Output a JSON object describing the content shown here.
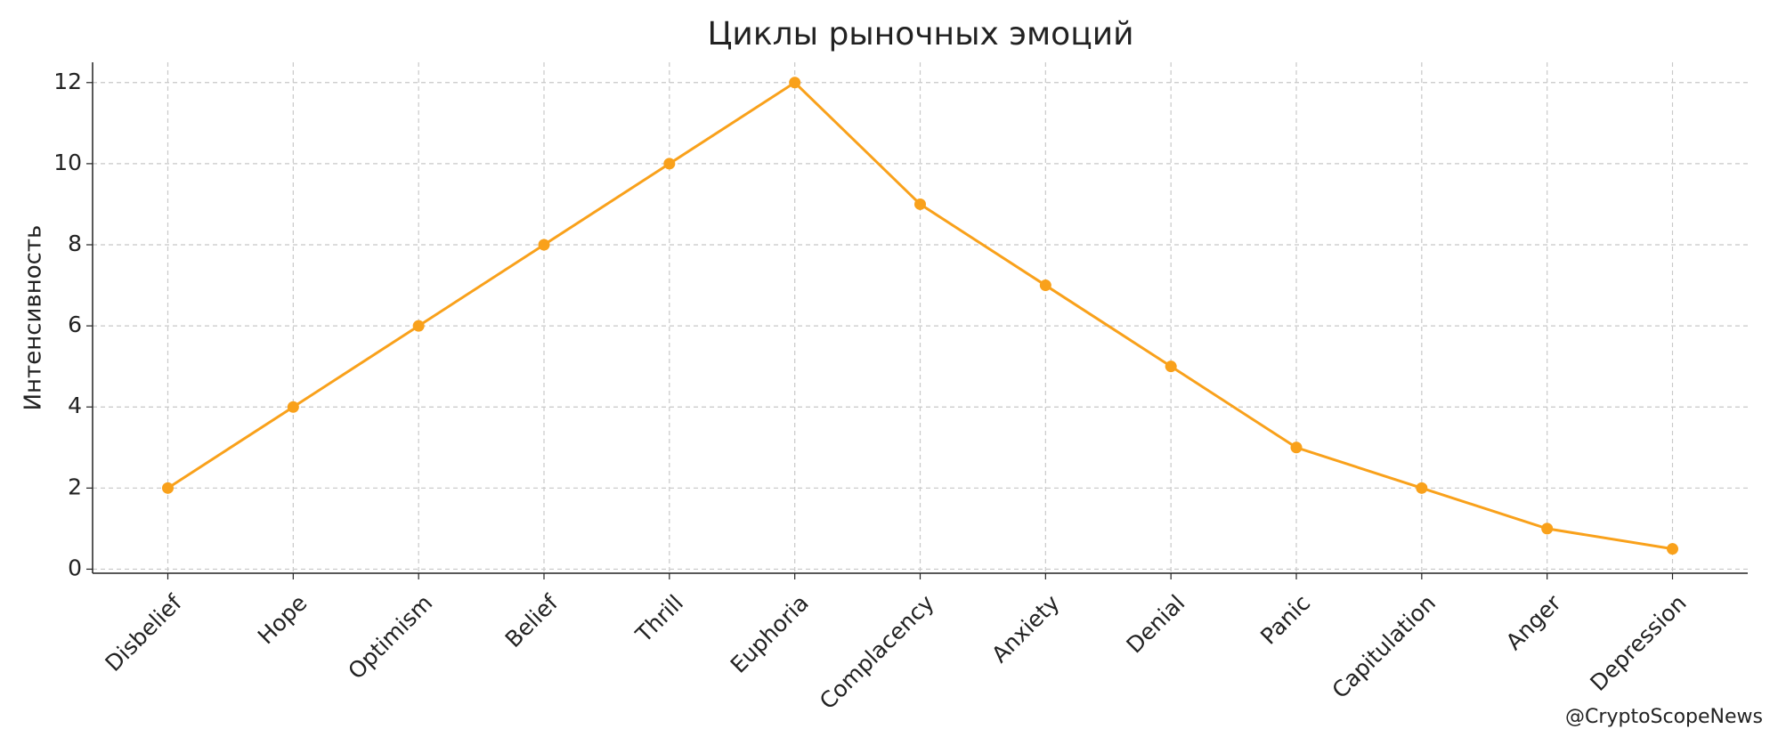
{
  "chart_data": {
    "type": "line",
    "title": "Циклы рыночных эмоций",
    "y_label": "Интенсивность",
    "categories": [
      "Disbelief",
      "Hope",
      "Optimism",
      "Belief",
      "Thrill",
      "Euphoria",
      "Complacency",
      "Anxiety",
      "Denial",
      "Panic",
      "Capitulation",
      "Anger",
      "Depression"
    ],
    "series": [
      {
        "name": "Интенсивность",
        "color": "#f9a11b",
        "values": [
          2,
          4,
          6,
          8,
          10,
          12,
          9,
          7,
          5,
          3,
          2,
          1,
          0.5
        ]
      }
    ],
    "ylim": [
      -0.1,
      12.5
    ],
    "yticks": [
      0,
      2,
      4,
      6,
      8,
      10,
      12
    ],
    "grid": true,
    "watermark": "@CryptoScopeNews"
  }
}
